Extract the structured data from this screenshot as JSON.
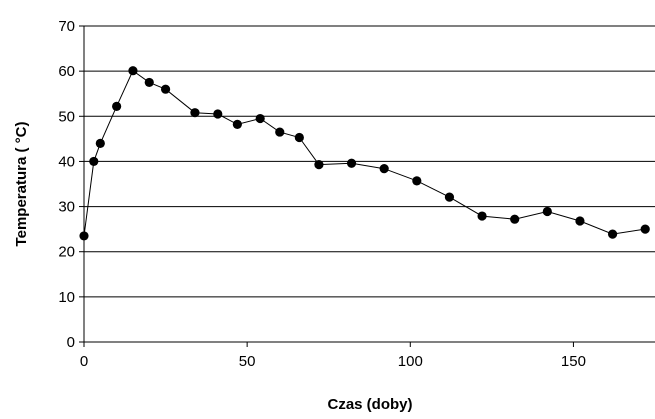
{
  "chart_data": {
    "type": "line",
    "title": "",
    "xlabel": "Czas (doby)",
    "ylabel": "Temperatura ( °C)",
    "xlim": [
      0,
      175
    ],
    "ylim": [
      0,
      70
    ],
    "x_ticks": [
      0,
      50,
      100,
      150
    ],
    "y_ticks": [
      0,
      10,
      20,
      30,
      40,
      50,
      60,
      70
    ],
    "grid": "horizontal",
    "legend": "none",
    "series": [
      {
        "marker": "circle",
        "color": "#000000",
        "points": [
          [
            0,
            23.5
          ],
          [
            3,
            40
          ],
          [
            5,
            44
          ],
          [
            10,
            52.2
          ],
          [
            15,
            60.1
          ],
          [
            20,
            57.5
          ],
          [
            25,
            56
          ],
          [
            34,
            50.8
          ],
          [
            41,
            50.5
          ],
          [
            47,
            48.2
          ],
          [
            54,
            49.5
          ],
          [
            60,
            46.5
          ],
          [
            66,
            45.3
          ],
          [
            72,
            39.3
          ],
          [
            82,
            39.6
          ],
          [
            92,
            38.4
          ],
          [
            102,
            35.7
          ],
          [
            112,
            32.1
          ],
          [
            122,
            27.9
          ],
          [
            132,
            27.2
          ],
          [
            142,
            28.9
          ],
          [
            152,
            26.8
          ],
          [
            162,
            23.9
          ],
          [
            172,
            25
          ]
        ]
      }
    ]
  }
}
